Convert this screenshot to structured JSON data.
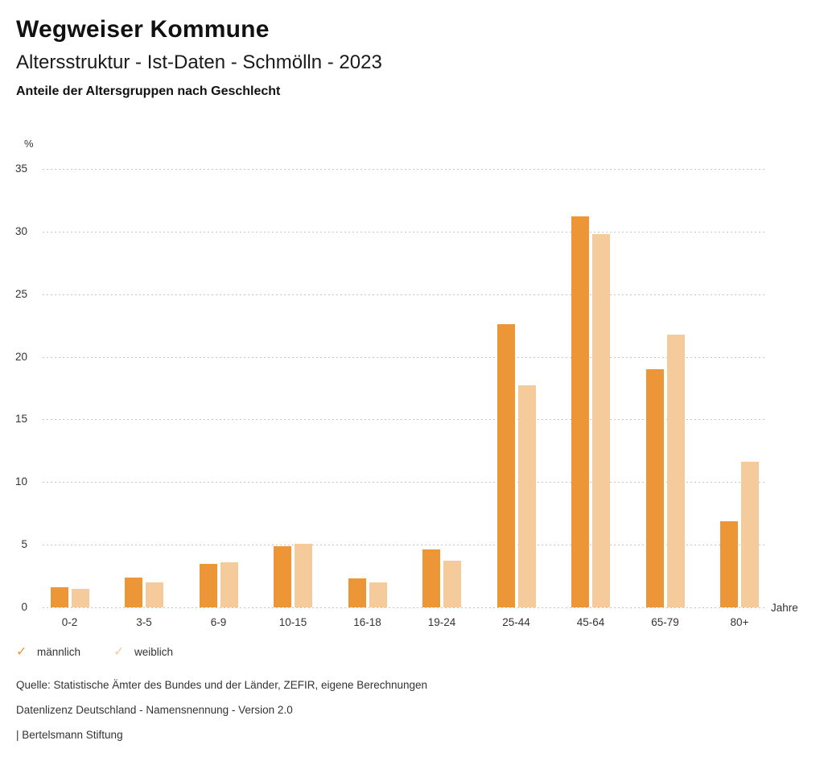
{
  "page": {
    "title": "Wegweiser Kommune",
    "subtitle": "Altersstruktur - Ist-Daten - Schmölln - 2023",
    "chart_heading": "Anteile der Altersgruppen nach Geschlecht"
  },
  "chart_data": {
    "type": "bar",
    "title": "Anteile der Altersgruppen nach Geschlecht",
    "unit_label": "%",
    "xlabel": "Jahre",
    "ylabel": "%",
    "categories": [
      "0-2",
      "3-5",
      "6-9",
      "10-15",
      "16-18",
      "19-24",
      "25-44",
      "45-64",
      "65-79",
      "80+"
    ],
    "series": [
      {
        "name": "männlich",
        "color": "#ED9637",
        "values": [
          1.6,
          2.4,
          3.5,
          4.9,
          2.3,
          4.6,
          22.6,
          31.2,
          19.0,
          6.9
        ]
      },
      {
        "name": "weiblich",
        "color": "#F5CB9B",
        "values": [
          1.5,
          2.0,
          3.6,
          5.1,
          2.0,
          3.7,
          17.7,
          29.8,
          21.8,
          11.6
        ]
      }
    ],
    "ylim": [
      0,
      35
    ],
    "yticks": [
      0,
      5,
      10,
      15,
      20,
      25,
      30,
      35
    ],
    "grid": "horizontal-dotted",
    "legend_position": "bottom-left"
  },
  "legend": {
    "items": [
      {
        "label": "männlich",
        "color": "#ED9637",
        "icon": "check-icon"
      },
      {
        "label": "weiblich",
        "color": "#F5CB9B",
        "icon": "check-icon"
      }
    ]
  },
  "footer": {
    "source": "Quelle: Statistische Ämter des Bundes und der Länder, ZEFIR, eigene Berechnungen",
    "license": "Datenlizenz Deutschland - Namensnennung - Version 2.0",
    "attribution": "| Bertelsmann Stiftung"
  }
}
